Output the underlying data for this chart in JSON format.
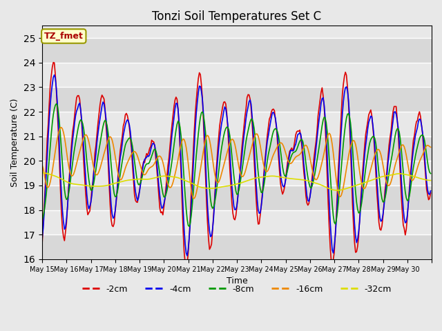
{
  "title": "Tonzi Soil Temperatures Set C",
  "xlabel": "Time",
  "ylabel": "Soil Temperature (C)",
  "ylim": [
    16.0,
    25.5
  ],
  "yticks": [
    16.0,
    17.0,
    18.0,
    19.0,
    20.0,
    21.0,
    22.0,
    23.0,
    24.0,
    25.0
  ],
  "colors": {
    "-2cm": "#dd0000",
    "-4cm": "#0000ee",
    "-8cm": "#009900",
    "-16cm": "#ee8800",
    "-32cm": "#dddd00"
  },
  "legend_label": "TZ_fmet",
  "legend_bg": "#ffffcc",
  "legend_border": "#999900",
  "plot_bg": "#e8e8e8",
  "fig_bg": "#e8e8e8",
  "grid_color": "#ffffff",
  "band_light": "#ebebeb",
  "band_dark": "#d8d8d8",
  "x_tick_labels": [
    "May 15",
    "May 16",
    "May 17",
    "May 18",
    "May 19",
    "May 20",
    "May 21",
    "May 22",
    "May 23",
    "May 24",
    "May 25",
    "May 26",
    "May 27",
    "May 28",
    "May 29",
    "May 30"
  ],
  "n_days": 16
}
